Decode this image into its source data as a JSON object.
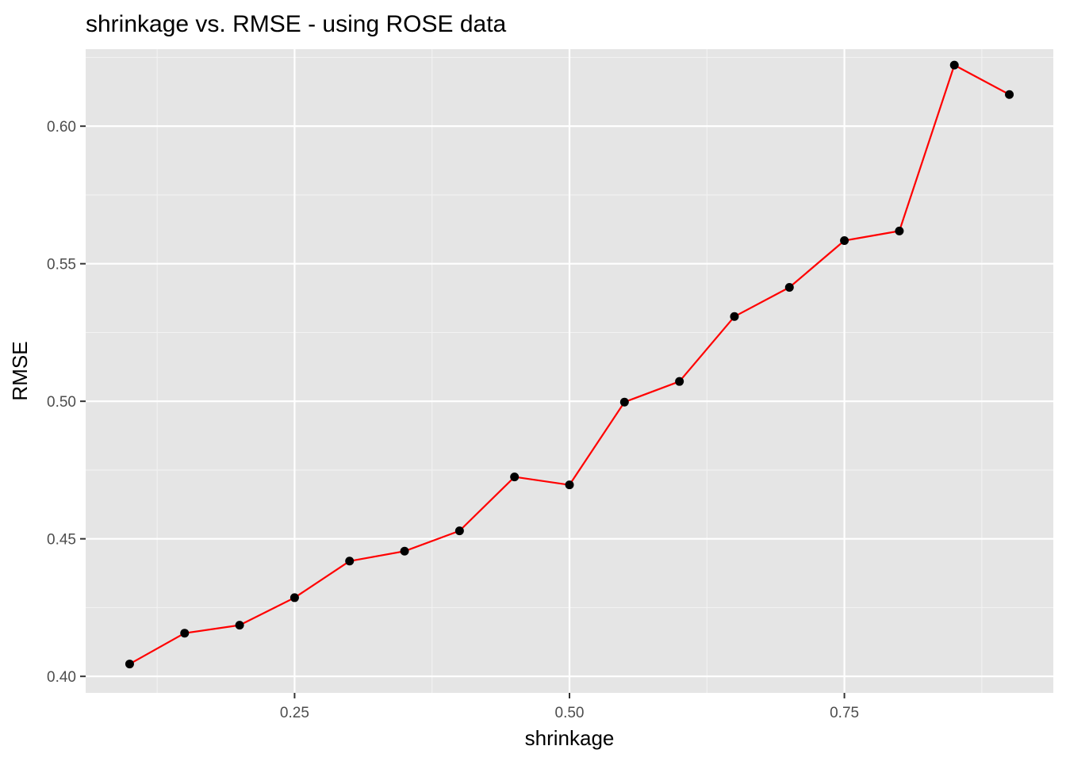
{
  "chart_data": {
    "type": "line",
    "title": "shrinkage vs. RMSE - using ROSE data",
    "xlabel": "shrinkage",
    "ylabel": "RMSE",
    "xlim": [
      0.06,
      0.94
    ],
    "ylim": [
      0.394,
      0.628
    ],
    "x_ticks": [
      0.25,
      0.5,
      0.75
    ],
    "x_tick_labels": [
      "0.25",
      "0.50",
      "0.75"
    ],
    "y_ticks": [
      0.4,
      0.45,
      0.5,
      0.55,
      0.6
    ],
    "y_tick_labels": [
      "0.40",
      "0.45",
      "0.50",
      "0.55",
      "0.60"
    ],
    "grid": true,
    "legend": "none",
    "series": [
      {
        "x": [
          0.1,
          0.15,
          0.2,
          0.25,
          0.3,
          0.35,
          0.4,
          0.45,
          0.5,
          0.55,
          0.6,
          0.65,
          0.7,
          0.75,
          0.8,
          0.85,
          0.9
        ],
        "values": [
          0.4045,
          0.4157,
          0.4186,
          0.4286,
          0.4419,
          0.4455,
          0.4529,
          0.4725,
          0.4696,
          0.4997,
          0.5072,
          0.5308,
          0.5414,
          0.5584,
          0.5619,
          0.6222,
          0.6115
        ],
        "line_color": "#ff0000",
        "point_color": "#000000"
      }
    ]
  },
  "colors": {
    "panel_background": "#e5e5e5",
    "grid_major": "#ffffff",
    "grid_minor": "#f2f2f2",
    "line": "#ff0000",
    "point": "#000000"
  }
}
